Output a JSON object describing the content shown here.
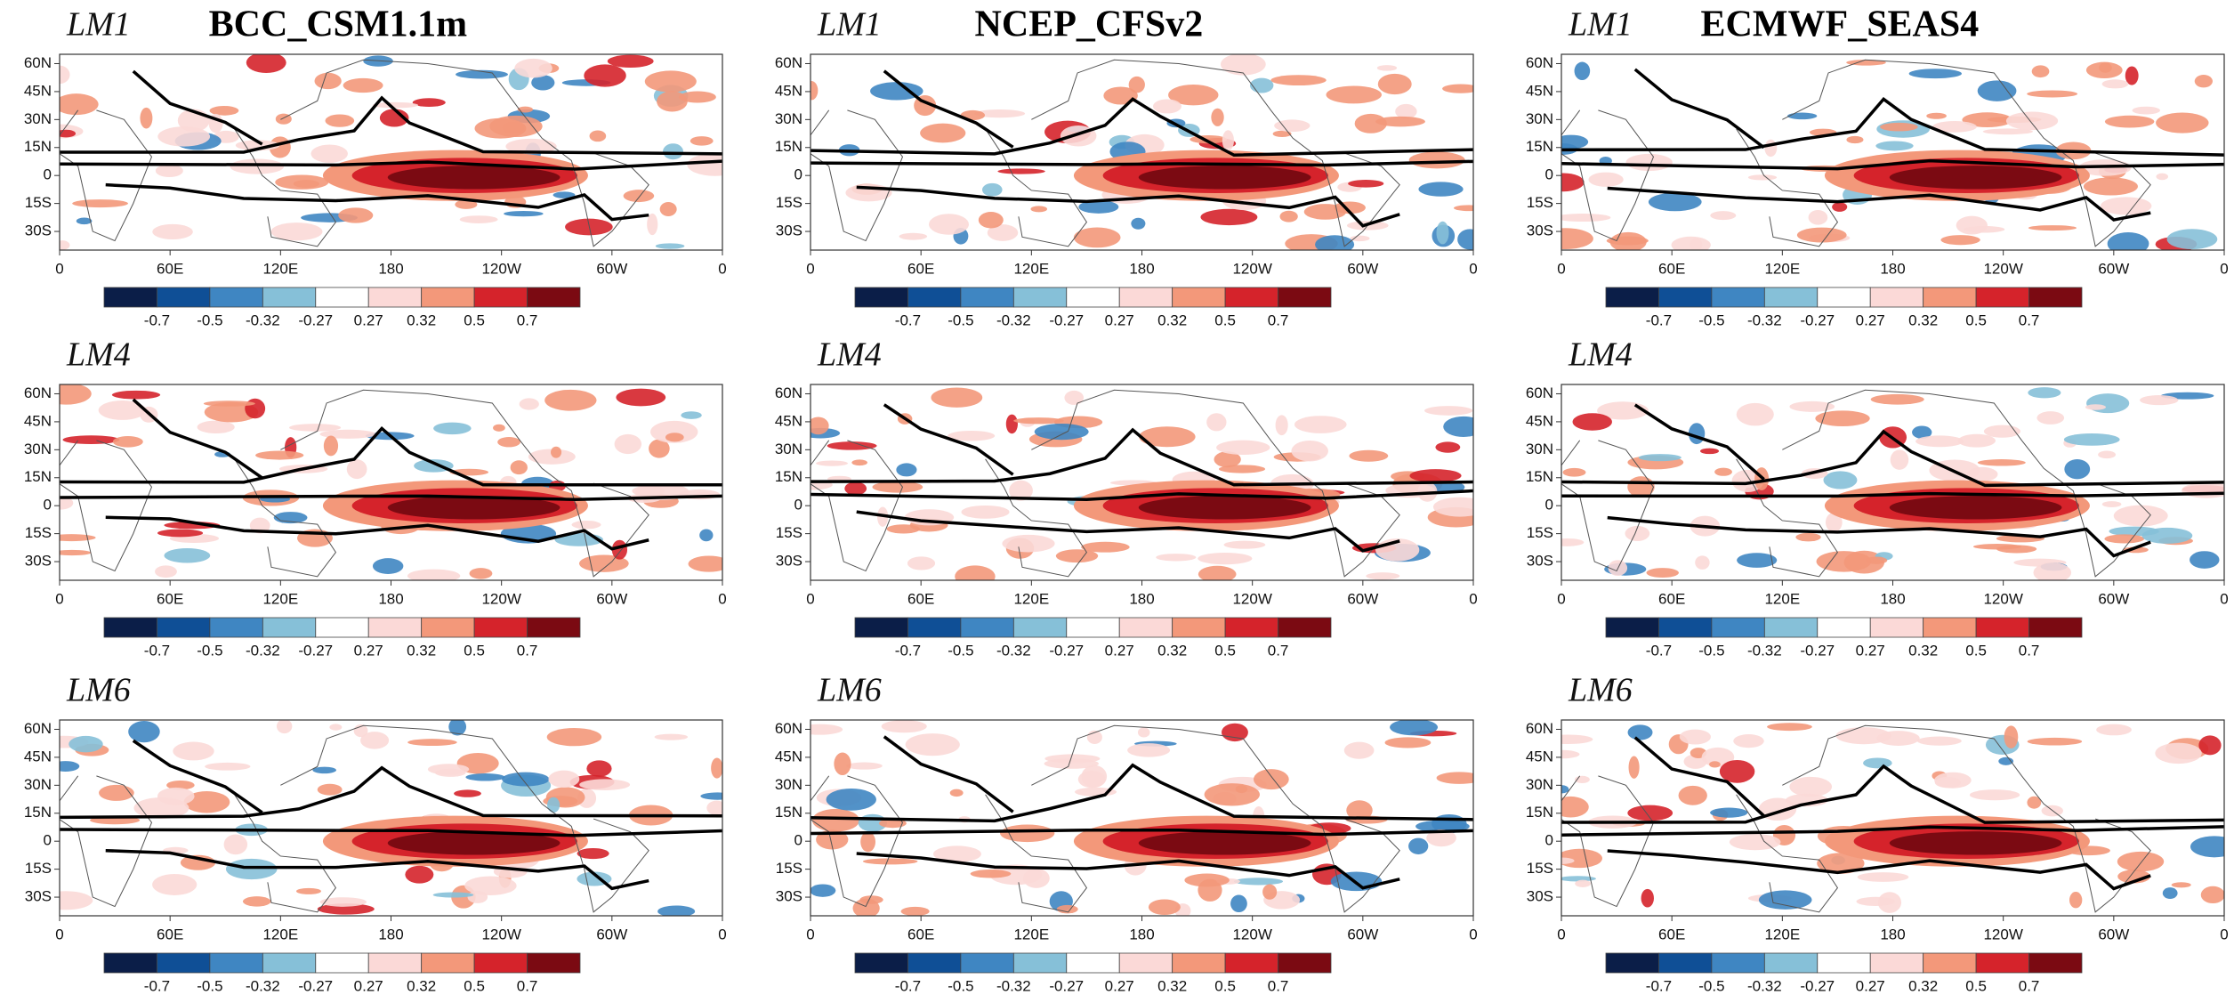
{
  "models": [
    "BCC_CSM1.1m",
    "NCEP_CFSv2",
    "ECMWF_SEAS4"
  ],
  "leads": [
    "LM1",
    "LM4",
    "LM6"
  ],
  "map_axes": {
    "xlim": [
      0,
      360
    ],
    "ylim": [
      -40,
      65
    ],
    "xticks": [
      0,
      {
        "value": 60,
        "label": "60E"
      },
      {
        "value": 120,
        "label": "120E"
      },
      180,
      {
        "value": 240,
        "label": "120W"
      },
      {
        "value": 300,
        "label": "60W"
      },
      {
        "value": 360,
        "label": "0"
      }
    ],
    "yticks": [
      {
        "value": 60,
        "label": "60N"
      },
      {
        "value": 45,
        "label": "45N"
      },
      {
        "value": 30,
        "label": "30N"
      },
      {
        "value": 15,
        "label": "15N"
      },
      0,
      {
        "value": -15,
        "label": "15S"
      },
      {
        "value": -30,
        "label": "30S"
      }
    ]
  },
  "colorbar": {
    "levels": [
      -0.7,
      -0.5,
      -0.32,
      -0.27,
      0.27,
      0.32,
      0.5,
      0.7
    ],
    "colors": [
      "#0b1e48",
      "#0f4f96",
      "#3f86c2",
      "#86c0d8",
      "#ffffff",
      "#fbd9d7",
      "#f3987a",
      "#d5232b",
      "#7b0a12"
    ]
  }
}
